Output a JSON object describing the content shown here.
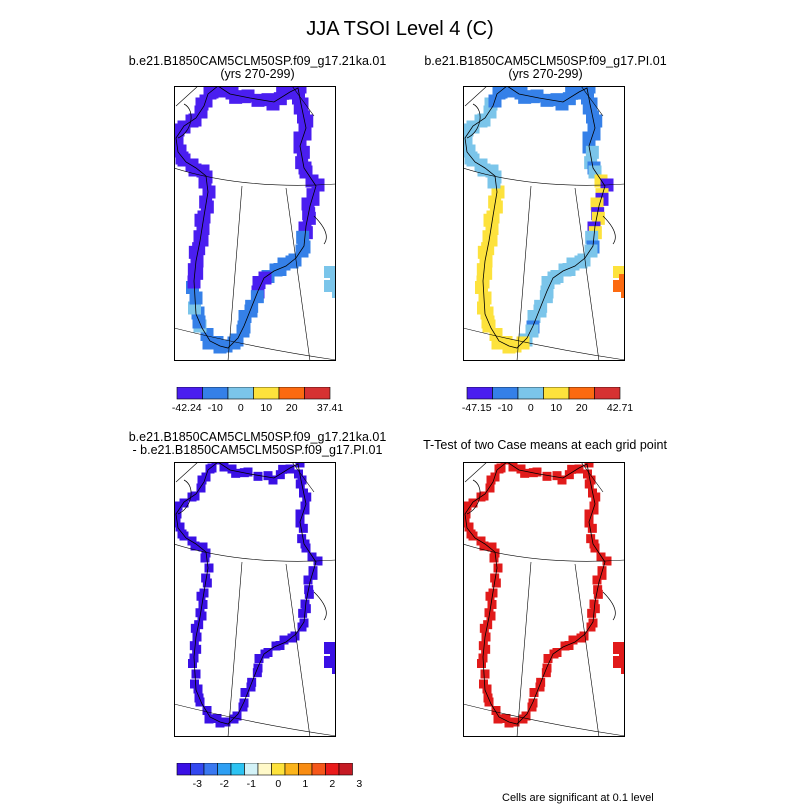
{
  "title": "JJA TSOI Level 4 (C)",
  "panels": [
    {
      "title_lines": [
        "b.e21.B1850CAM5CLM50SP.f09_g17.21ka.01",
        "(yrs 270-299)"
      ],
      "kind": "lgm"
    },
    {
      "title_lines": [
        "b.e21.B1850CAM5CLM50SP.f09_g17.PI.01",
        "(yrs 270-299)"
      ],
      "kind": "pi"
    },
    {
      "title_lines": [
        "b.e21.B1850CAM5CLM50SP.f09_g17.21ka.01",
        "- b.e21.B1850CAM5CLM50SP.f09_g17.PI.01"
      ],
      "kind": "diff"
    },
    {
      "title_lines": [
        "T-Test of two Case means at each grid point"
      ],
      "kind": "ttest"
    }
  ],
  "colorbars": [
    {
      "colors": [
        "#4a1ef0",
        "#3580e8",
        "#7bc5ea",
        "#fde23c",
        "#fc6a10",
        "#d63232"
      ],
      "labels": [
        "-42.24",
        "-10",
        "0",
        "10",
        "20",
        "37.41"
      ]
    },
    {
      "colors": [
        "#4a1ef0",
        "#3580e8",
        "#7bc5ea",
        "#fde23c",
        "#fc6a10",
        "#d63232"
      ],
      "labels": [
        "-47.15",
        "-10",
        "0",
        "10",
        "20",
        "42.71"
      ]
    },
    {
      "colors": [
        "#3a10e5",
        "#3348f0",
        "#3a78f0",
        "#2e9ff3",
        "#2dc3f2",
        "#d3f2f7",
        "#fff9c9",
        "#fde23c",
        "#fbb41b",
        "#f88c12",
        "#f5571a",
        "#ea1b1b",
        "#c51a24"
      ],
      "labels": [
        "-3",
        "-2",
        "-1",
        "0",
        "1",
        "2",
        "3"
      ]
    }
  ],
  "footnote": "Cells are significant at 0.1 level",
  "chart_data": [
    {
      "type": "heatmap",
      "title": "b.e21.B1850CAM5CLM50SP.f09_g17.21ka.01 (yrs 270-299)",
      "variable": "JJA TSOI Level 4 (C)",
      "range": [
        -42.24,
        37.41
      ],
      "levels": [
        -10,
        0,
        10,
        20
      ],
      "cells_by_band": {
        "-42.24 to -10": "ring of cells along the Greenland margin (majority)",
        "-10 to 0": "southwest margin and eastern coast cells"
      }
    },
    {
      "type": "heatmap",
      "title": "b.e21.B1850CAM5CLM50SP.f09_g17.PI.01 (yrs 270-299)",
      "variable": "JJA TSOI Level 4 (C)",
      "range": [
        -47.15,
        42.71
      ],
      "levels": [
        -10,
        0,
        10,
        20
      ],
      "cells_by_band": {
        "-47.15 to -10": "northern coast",
        "-10 to 0": "east and north-west coasts",
        "0 to 10": "west and south-west coasts",
        "10 to 20": "eastern island",
        "20 to 42.71": "southern tip"
      }
    },
    {
      "type": "heatmap",
      "title": "b.e21.B1850CAM5CLM50SP.f09_g17.21ka.01 - b.e21.B1850CAM5CLM50SP.f09_g17.PI.01",
      "levels": [
        -3,
        -2,
        -1,
        0,
        1,
        2,
        3
      ],
      "cells_by_band": {
        "< -3": "all shown margin cells"
      }
    },
    {
      "type": "heatmap",
      "title": "T-Test of two Case means at each grid point",
      "cells": "all shown margin cells significant (red)"
    }
  ]
}
